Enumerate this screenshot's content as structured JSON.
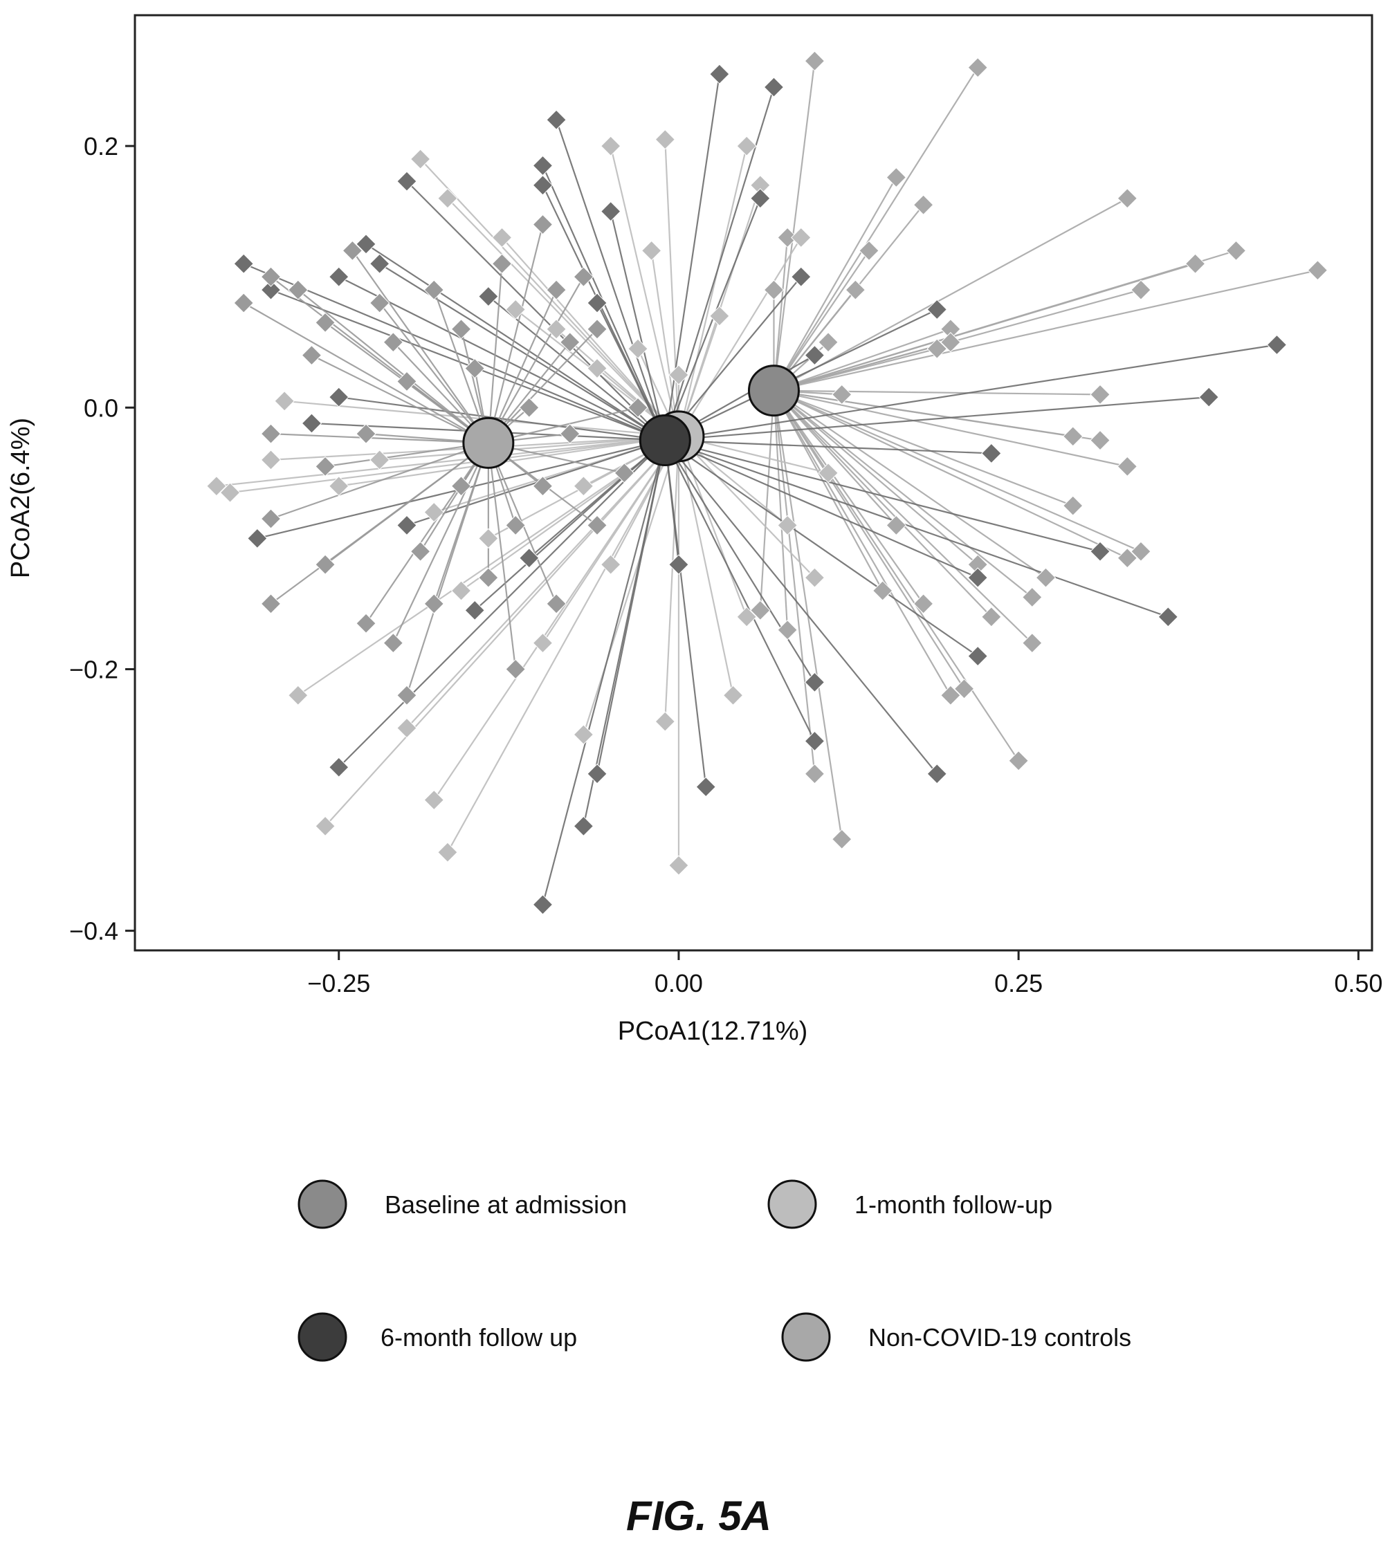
{
  "chart_data": {
    "type": "scatter",
    "title": "",
    "xlabel": "PCoA1(12.71%)",
    "ylabel": "PCoA2(6.4%)",
    "xlim": [
      -0.4,
      0.51
    ],
    "ylim": [
      -0.415,
      0.3
    ],
    "xticks": [
      -0.25,
      0.0,
      0.25,
      0.5
    ],
    "xtick_labels": [
      "−0.25",
      "0.00",
      "0.25",
      "0.50"
    ],
    "yticks": [
      0.2,
      0.0,
      -0.2,
      -0.4
    ],
    "ytick_labels": [
      "0.2",
      "0.0",
      "−0.2",
      "−0.4"
    ],
    "grid": false,
    "legend_position": "bottom",
    "centroid_colors": {
      "baseline": "#8a8a8a",
      "one_month": "#bdbdbd",
      "six_month": "#3c3c3c",
      "controls": "#a8a8a8"
    },
    "series": [
      {
        "name": "Baseline at admission",
        "key": "baseline",
        "centroid": [
          0.07,
          0.013
        ],
        "point_color": "#a8a8a8",
        "points": [
          [
            0.22,
            0.26
          ],
          [
            0.33,
            0.16
          ],
          [
            0.41,
            0.12
          ],
          [
            0.47,
            0.105
          ],
          [
            0.38,
            0.11
          ],
          [
            0.34,
            0.09
          ],
          [
            0.2,
            0.06
          ],
          [
            0.31,
            0.01
          ],
          [
            0.12,
            0.01
          ],
          [
            0.33,
            -0.045
          ],
          [
            0.29,
            -0.022
          ],
          [
            0.31,
            -0.025
          ],
          [
            0.34,
            -0.11
          ],
          [
            0.29,
            -0.075
          ],
          [
            0.27,
            -0.13
          ],
          [
            0.26,
            -0.145
          ],
          [
            0.25,
            -0.27
          ],
          [
            0.2,
            -0.22
          ],
          [
            0.26,
            -0.18
          ],
          [
            0.23,
            -0.16
          ],
          [
            0.21,
            -0.215
          ],
          [
            0.12,
            -0.33
          ],
          [
            0.1,
            -0.28
          ],
          [
            0.08,
            -0.17
          ],
          [
            0.06,
            -0.155
          ],
          [
            0.15,
            -0.14
          ],
          [
            0.18,
            -0.15
          ],
          [
            0.16,
            0.176
          ],
          [
            0.18,
            0.155
          ],
          [
            0.1,
            0.265
          ],
          [
            0.11,
            0.05
          ],
          [
            0.14,
            0.12
          ],
          [
            0.08,
            0.13
          ],
          [
            0.33,
            -0.115
          ],
          [
            0.22,
            -0.12
          ],
          [
            0.19,
            0.045
          ],
          [
            0.2,
            0.05
          ],
          [
            0.13,
            0.09
          ],
          [
            0.07,
            0.09
          ],
          [
            0.16,
            -0.09
          ]
        ]
      },
      {
        "name": "1-month follow-up",
        "key": "one_month",
        "centroid": [
          0.0,
          -0.022
        ],
        "point_color": "#bdbdbd",
        "points": [
          [
            -0.19,
            0.19
          ],
          [
            -0.17,
            0.16
          ],
          [
            -0.05,
            0.2
          ],
          [
            -0.01,
            0.205
          ],
          [
            0.05,
            0.2
          ],
          [
            0.06,
            0.17
          ],
          [
            0.09,
            0.13
          ],
          [
            -0.02,
            0.12
          ],
          [
            -0.13,
            0.13
          ],
          [
            -0.12,
            0.075
          ],
          [
            -0.09,
            0.06
          ],
          [
            -0.06,
            0.03
          ],
          [
            -0.03,
            0.045
          ],
          [
            -0.07,
            -0.06
          ],
          [
            -0.05,
            -0.12
          ],
          [
            -0.1,
            -0.18
          ],
          [
            -0.07,
            -0.25
          ],
          [
            -0.01,
            -0.24
          ],
          [
            0.0,
            -0.35
          ],
          [
            0.04,
            -0.22
          ],
          [
            0.05,
            -0.16
          ],
          [
            0.08,
            -0.09
          ],
          [
            0.1,
            -0.13
          ],
          [
            0.11,
            -0.05
          ],
          [
            -0.16,
            -0.14
          ],
          [
            -0.18,
            -0.08
          ],
          [
            -0.14,
            -0.1
          ],
          [
            -0.22,
            -0.04
          ],
          [
            -0.25,
            -0.06
          ],
          [
            -0.29,
            0.005
          ],
          [
            -0.3,
            -0.04
          ],
          [
            -0.33,
            -0.065
          ],
          [
            -0.34,
            -0.06
          ],
          [
            -0.28,
            -0.22
          ],
          [
            -0.2,
            -0.245
          ],
          [
            -0.18,
            -0.3
          ],
          [
            -0.17,
            -0.34
          ],
          [
            -0.26,
            -0.32
          ],
          [
            0.0,
            0.025
          ],
          [
            0.03,
            0.07
          ]
        ]
      },
      {
        "name": "6-month follow up",
        "key": "six_month",
        "centroid": [
          -0.01,
          -0.025
        ],
        "point_color": "#6e6e6e",
        "points": [
          [
            0.03,
            0.255
          ],
          [
            0.07,
            0.245
          ],
          [
            -0.09,
            0.22
          ],
          [
            -0.1,
            0.185
          ],
          [
            -0.1,
            0.17
          ],
          [
            -0.2,
            0.173
          ],
          [
            -0.05,
            0.15
          ],
          [
            0.06,
            0.16
          ],
          [
            -0.32,
            0.11
          ],
          [
            -0.22,
            0.11
          ],
          [
            -0.25,
            0.1
          ],
          [
            -0.14,
            0.085
          ],
          [
            -0.06,
            0.08
          ],
          [
            0.09,
            0.1
          ],
          [
            0.19,
            0.075
          ],
          [
            0.44,
            0.048
          ],
          [
            0.39,
            0.008
          ],
          [
            0.1,
            0.04
          ],
          [
            0.23,
            -0.035
          ],
          [
            0.31,
            -0.11
          ],
          [
            0.36,
            -0.16
          ],
          [
            0.22,
            -0.13
          ],
          [
            0.22,
            -0.19
          ],
          [
            0.19,
            -0.28
          ],
          [
            0.1,
            -0.21
          ],
          [
            0.1,
            -0.255
          ],
          [
            0.02,
            -0.29
          ],
          [
            0.0,
            -0.12
          ],
          [
            -0.06,
            -0.28
          ],
          [
            -0.07,
            -0.32
          ],
          [
            -0.1,
            -0.38
          ],
          [
            -0.15,
            -0.155
          ],
          [
            -0.25,
            -0.275
          ],
          [
            -0.31,
            -0.1
          ],
          [
            -0.2,
            -0.09
          ],
          [
            -0.11,
            -0.115
          ],
          [
            -0.27,
            -0.012
          ],
          [
            -0.25,
            0.008
          ],
          [
            -0.3,
            0.09
          ],
          [
            -0.23,
            0.125
          ]
        ]
      },
      {
        "name": "Non-COVID-19 controls",
        "key": "controls",
        "centroid": [
          -0.14,
          -0.027
        ],
        "point_color": "#9a9a9a",
        "points": [
          [
            -0.32,
            0.08
          ],
          [
            -0.3,
            0.1
          ],
          [
            -0.28,
            0.09
          ],
          [
            -0.26,
            0.065
          ],
          [
            -0.24,
            0.12
          ],
          [
            -0.21,
            0.05
          ],
          [
            -0.18,
            0.09
          ],
          [
            -0.16,
            0.06
          ],
          [
            -0.13,
            0.11
          ],
          [
            -0.1,
            0.14
          ],
          [
            -0.08,
            0.05
          ],
          [
            -0.2,
            0.02
          ],
          [
            -0.23,
            -0.02
          ],
          [
            -0.26,
            -0.045
          ],
          [
            -0.3,
            -0.085
          ],
          [
            -0.3,
            -0.15
          ],
          [
            -0.26,
            -0.12
          ],
          [
            -0.23,
            -0.165
          ],
          [
            -0.21,
            -0.18
          ],
          [
            -0.19,
            -0.11
          ],
          [
            -0.16,
            -0.06
          ],
          [
            -0.12,
            -0.09
          ],
          [
            -0.1,
            -0.06
          ],
          [
            -0.09,
            -0.15
          ],
          [
            -0.12,
            -0.2
          ],
          [
            -0.2,
            -0.22
          ],
          [
            -0.18,
            -0.15
          ],
          [
            -0.14,
            -0.13
          ],
          [
            -0.06,
            -0.09
          ],
          [
            -0.04,
            -0.05
          ],
          [
            -0.03,
            0.0
          ],
          [
            -0.06,
            0.06
          ],
          [
            -0.09,
            0.09
          ],
          [
            -0.27,
            0.04
          ],
          [
            -0.3,
            -0.02
          ],
          [
            -0.22,
            0.08
          ],
          [
            -0.15,
            0.03
          ],
          [
            -0.11,
            0.0
          ],
          [
            -0.08,
            -0.02
          ],
          [
            -0.07,
            0.1
          ]
        ]
      }
    ]
  },
  "figure_caption": "FIG. 5A"
}
